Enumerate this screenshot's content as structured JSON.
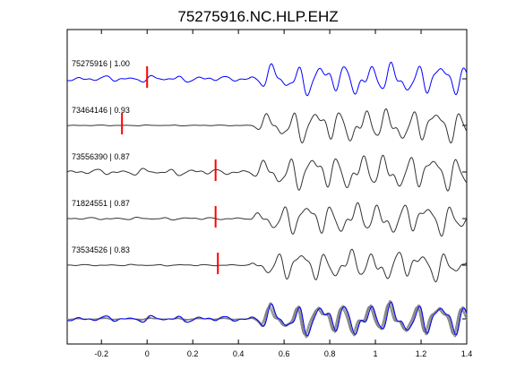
{
  "chart_data": {
    "type": "line",
    "title": "75275916.NC.HLP.EHZ",
    "xlabel": "",
    "ylabel": "",
    "xlim": [
      -0.35,
      1.4
    ],
    "xticks": [
      -0.2,
      0,
      0.2,
      0.4,
      0.6,
      0.8,
      1,
      1.2,
      1.4
    ],
    "xtick_labels": [
      "-0.2",
      "0",
      "0.2",
      "0.4",
      "0.6",
      "0.8",
      "1",
      "1.2",
      "1.4"
    ],
    "grid": false,
    "legend": "none",
    "colors": {
      "reference_trace": "#0000ff",
      "other_trace": "#333333",
      "overlay_trace": "#808080",
      "pick_marker": "#ff0000"
    },
    "traces": [
      {
        "label": "75275916 | 1.00",
        "color": "#0000ff",
        "pick_time": 0.0,
        "start_amp": 0.18,
        "end_amp": 0.85,
        "pre_shape": 0.9,
        "seed": 0.0
      },
      {
        "label": "73464146 | 0.93",
        "color": "#333333",
        "pick_time": -0.11,
        "start_amp": 0.03,
        "end_amp": 0.9,
        "pre_shape": 0.3,
        "seed": 1.3
      },
      {
        "label": "73556390 | 0.87",
        "color": "#333333",
        "pick_time": 0.3,
        "start_amp": 0.18,
        "end_amp": 0.95,
        "pre_shape": 1.0,
        "seed": 2.1
      },
      {
        "label": "71824551 | 0.87",
        "color": "#333333",
        "pick_time": 0.3,
        "start_amp": 0.08,
        "end_amp": 0.85,
        "pre_shape": 0.6,
        "seed": 3.7
      },
      {
        "label": "73534526 | 0.83",
        "color": "#333333",
        "pick_time": 0.31,
        "start_amp": 0.05,
        "end_amp": 0.8,
        "pre_shape": 0.4,
        "seed": 5.2
      }
    ],
    "overlay": {
      "description": "stack",
      "count": 5
    }
  }
}
